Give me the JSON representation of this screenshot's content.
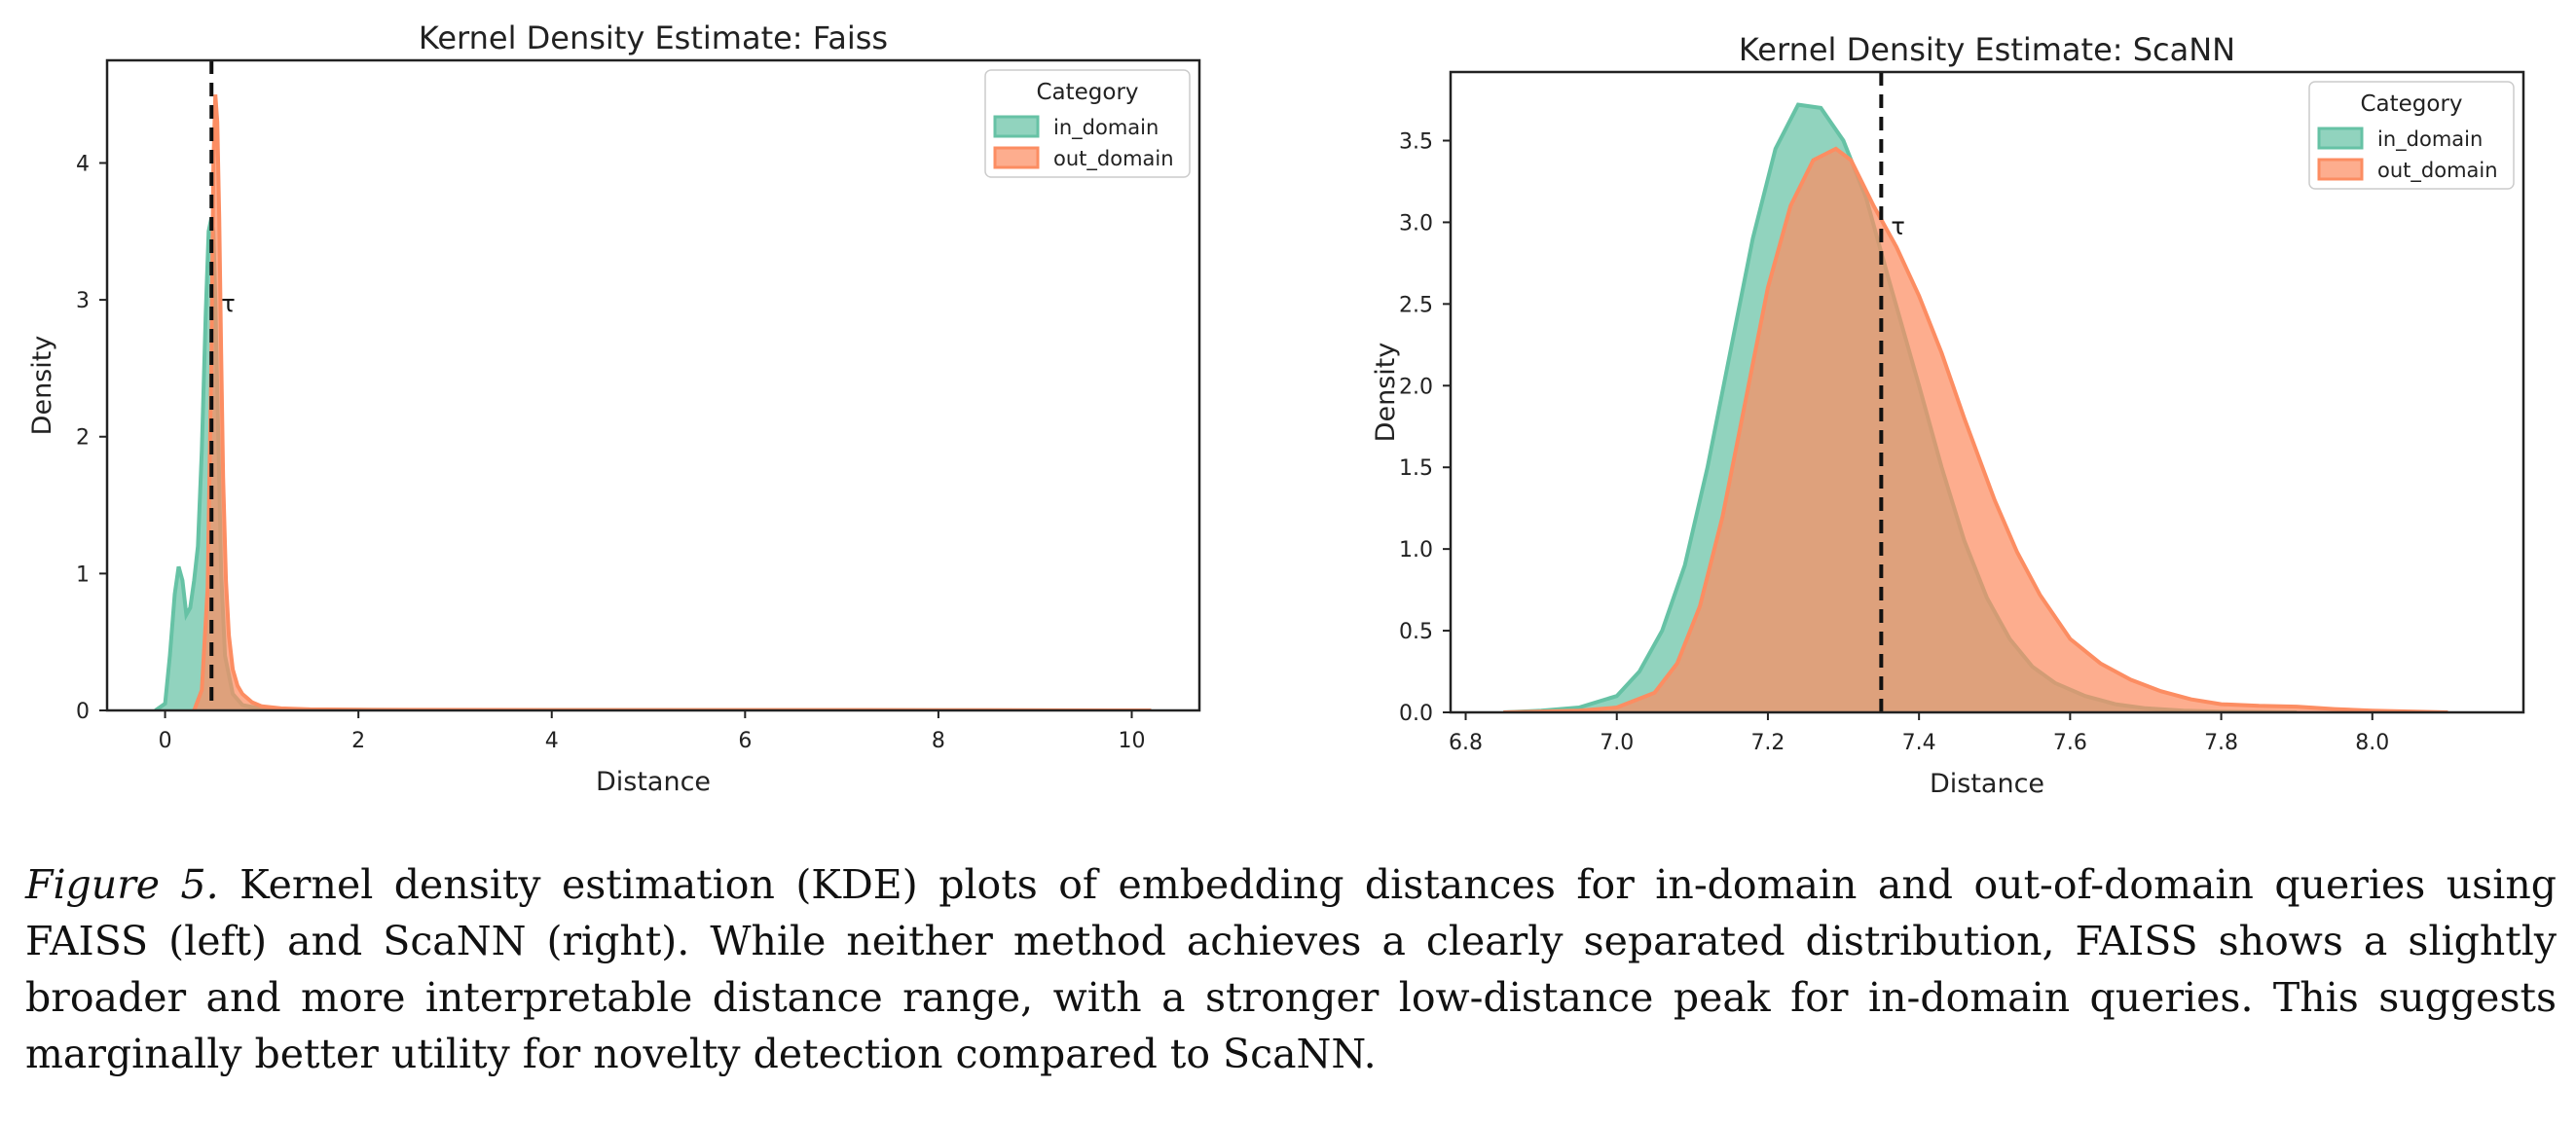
{
  "colors": {
    "in_domain": "#66c2a5",
    "out_domain": "#fc8d62",
    "threshold": "#111111",
    "axis": "#222222"
  },
  "caption": {
    "label": "Figure 5.",
    "text": "Kernel density estimation (KDE) plots of embedding distances for in-domain and out-of-domain queries using FAISS (left) and ScaNN (right). While neither method achieves a clearly separated distribution, FAISS shows a slightly broader and more interpretable distance range, with a stronger low-distance peak for in-domain queries. This suggests marginally better utility for novelty detection compared to ScaNN."
  },
  "chart_data": [
    {
      "type": "area",
      "title": "Kernel Density Estimate: Faiss",
      "xlabel": "Distance",
      "ylabel": "Density",
      "xlim": [
        -0.6,
        10.7
      ],
      "ylim": [
        0,
        4.75
      ],
      "xticks": [
        0,
        2,
        4,
        6,
        8,
        10
      ],
      "ytick_values": [
        0,
        1,
        2,
        3,
        4
      ],
      "yticks": [
        "0",
        "1",
        "2",
        "3",
        "4"
      ],
      "grid": false,
      "legend": {
        "title": "Category",
        "placement": "top-right",
        "entries": [
          "in_domain",
          "out_domain"
        ]
      },
      "threshold": {
        "x": 0.48,
        "label": "τ"
      },
      "series": [
        {
          "name": "in_domain",
          "x": [
            -0.1,
            0.0,
            0.05,
            0.1,
            0.14,
            0.18,
            0.22,
            0.26,
            0.3,
            0.34,
            0.38,
            0.42,
            0.45,
            0.48,
            0.5,
            0.52,
            0.55,
            0.58,
            0.62,
            0.7,
            0.8,
            1.0,
            1.5,
            3.0,
            6.0,
            10.2
          ],
          "y": [
            0.0,
            0.05,
            0.4,
            0.85,
            1.05,
            0.95,
            0.7,
            0.75,
            0.95,
            1.2,
            1.9,
            2.9,
            3.5,
            3.6,
            3.5,
            3.0,
            2.0,
            1.0,
            0.4,
            0.12,
            0.04,
            0.01,
            0.005,
            0.003,
            0.002,
            0.0
          ]
        },
        {
          "name": "out_domain",
          "x": [
            0.3,
            0.38,
            0.44,
            0.48,
            0.5,
            0.52,
            0.54,
            0.56,
            0.58,
            0.6,
            0.63,
            0.66,
            0.7,
            0.75,
            0.8,
            0.9,
            1.0,
            1.2,
            1.5,
            2.0,
            4.0,
            8.0,
            10.2
          ],
          "y": [
            0.0,
            0.15,
            0.9,
            2.6,
            4.0,
            4.5,
            4.3,
            3.6,
            2.6,
            1.7,
            0.95,
            0.55,
            0.3,
            0.18,
            0.12,
            0.06,
            0.03,
            0.015,
            0.008,
            0.005,
            0.003,
            0.002,
            0.0
          ]
        }
      ]
    },
    {
      "type": "area",
      "title": "Kernel Density Estimate: ScaNN",
      "xlabel": "Distance",
      "ylabel": "Density",
      "xlim": [
        6.78,
        8.2
      ],
      "ylim": [
        0,
        3.92
      ],
      "xticks": [
        6.8,
        7.0,
        7.2,
        7.4,
        7.6,
        7.8,
        8.0
      ],
      "xticklabels": [
        "6.8",
        "7.0",
        "7.2",
        "7.4",
        "7.6",
        "7.8",
        "8.0"
      ],
      "ytick_values": [
        0,
        0.5,
        1.0,
        1.5,
        2.0,
        2.5,
        3.0,
        3.5
      ],
      "yticks": [
        "0.0",
        "0.5",
        "1.0",
        "1.5",
        "2.0",
        "2.5",
        "3.0",
        "3.5"
      ],
      "grid": false,
      "legend": {
        "title": "Category",
        "placement": "top-right",
        "entries": [
          "in_domain",
          "out_domain"
        ]
      },
      "threshold": {
        "x": 7.35,
        "label": "τ"
      },
      "series": [
        {
          "name": "in_domain",
          "x": [
            6.85,
            6.9,
            6.95,
            7.0,
            7.03,
            7.06,
            7.09,
            7.12,
            7.15,
            7.18,
            7.21,
            7.24,
            7.27,
            7.3,
            7.33,
            7.36,
            7.4,
            7.43,
            7.46,
            7.49,
            7.52,
            7.55,
            7.58,
            7.62,
            7.66,
            7.7,
            7.75,
            7.8,
            7.9
          ],
          "y": [
            0.0,
            0.01,
            0.03,
            0.1,
            0.25,
            0.5,
            0.9,
            1.5,
            2.2,
            2.9,
            3.45,
            3.72,
            3.7,
            3.5,
            3.15,
            2.65,
            2.0,
            1.5,
            1.05,
            0.7,
            0.45,
            0.28,
            0.18,
            0.1,
            0.05,
            0.025,
            0.01,
            0.005,
            0.0
          ]
        },
        {
          "name": "out_domain",
          "x": [
            6.85,
            6.95,
            7.0,
            7.05,
            7.08,
            7.11,
            7.14,
            7.17,
            7.2,
            7.23,
            7.26,
            7.29,
            7.31,
            7.34,
            7.37,
            7.4,
            7.43,
            7.46,
            7.5,
            7.53,
            7.56,
            7.6,
            7.64,
            7.68,
            7.72,
            7.76,
            7.8,
            7.85,
            7.9,
            7.95,
            8.0,
            8.1
          ],
          "y": [
            0.0,
            0.01,
            0.03,
            0.12,
            0.3,
            0.65,
            1.2,
            1.9,
            2.6,
            3.1,
            3.38,
            3.45,
            3.38,
            3.1,
            2.85,
            2.55,
            2.2,
            1.8,
            1.3,
            0.98,
            0.72,
            0.45,
            0.3,
            0.2,
            0.13,
            0.08,
            0.05,
            0.04,
            0.035,
            0.02,
            0.01,
            0.0
          ]
        }
      ]
    }
  ]
}
